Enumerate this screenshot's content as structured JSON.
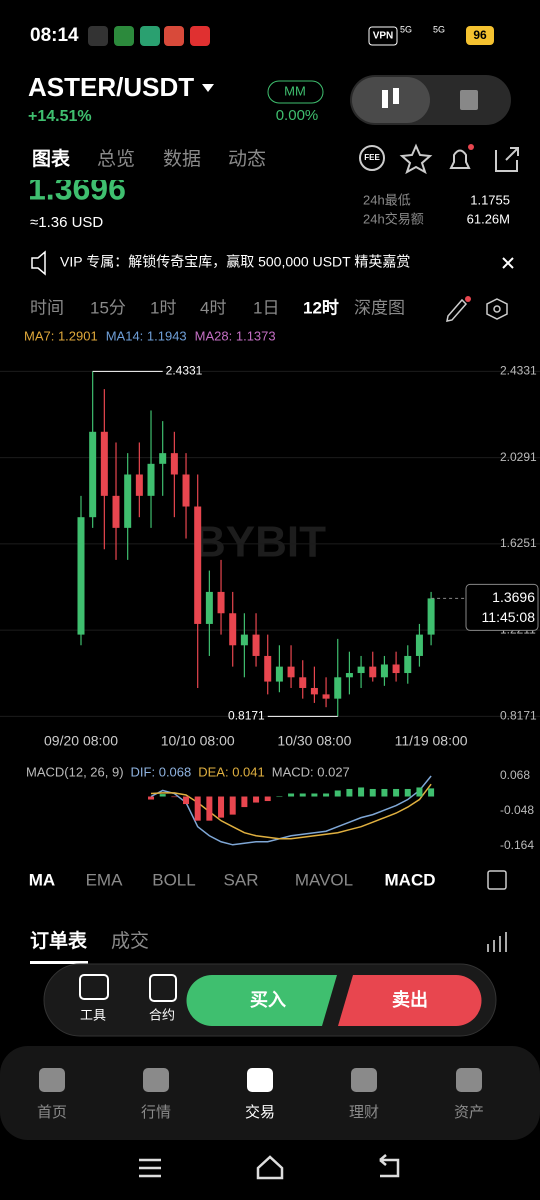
{
  "status_bar": {
    "time": "08:14",
    "vpn": "VPN",
    "network": "5G",
    "battery": "96"
  },
  "header": {
    "pair": "ASTER/USDT",
    "change": "+14.51%",
    "mm_label": "MM",
    "mm_value": "0.00%"
  },
  "tabs": [
    "图表",
    "总览",
    "数据",
    "动态"
  ],
  "fee_badge": "FEE",
  "market": {
    "last_price": "1.3696",
    "usd_price": "≈1.36 USD",
    "stats": [
      {
        "label": "24h最低",
        "value": "1.1755"
      },
      {
        "label": "24h交易额",
        "value": "61.26M"
      }
    ]
  },
  "banner": "VIP 专属：解锁传奇宝库，赢取 500,000 USDT 精英嘉赏",
  "intervals": [
    "时间",
    "15分",
    "1时",
    "4时",
    "1日",
    "12时",
    "深度图"
  ],
  "ma_legend": [
    {
      "text": "MA7: 1.2901",
      "color": "#e0a93b"
    },
    {
      "text": "MA14: 1.1943",
      "color": "#6f9fd8"
    },
    {
      "text": "MA28: 1.1373",
      "color": "#c46fc4"
    }
  ],
  "watermark": "BYBIT",
  "chart_data": [
    {
      "type": "candlestick",
      "categories": [
        "09/20 08:00",
        null,
        null,
        null,
        null,
        null,
        null,
        null,
        null,
        null,
        "10/10 08:00",
        null,
        null,
        null,
        null,
        null,
        null,
        null,
        null,
        null,
        "10/30 08:00",
        null,
        null,
        null,
        null,
        null,
        null,
        null,
        null,
        null,
        "11/19 08:00"
      ],
      "open": [
        1.2,
        1.75,
        2.15,
        1.85,
        1.7,
        1.95,
        1.85,
        2.0,
        2.05,
        1.95,
        1.8,
        1.25,
        1.4,
        1.3,
        1.15,
        1.2,
        1.1,
        0.98,
        1.05,
        1.0,
        0.95,
        0.92,
        0.9,
        1.0,
        1.02,
        1.05,
        1.0,
        1.06,
        1.02,
        1.1,
        1.2
      ],
      "high": [
        1.85,
        2.4331,
        2.35,
        2.1,
        2.05,
        2.1,
        2.25,
        2.2,
        2.15,
        2.05,
        1.95,
        1.5,
        1.55,
        1.4,
        1.3,
        1.3,
        1.2,
        1.15,
        1.15,
        1.08,
        1.05,
        1.0,
        1.18,
        1.12,
        1.1,
        1.12,
        1.1,
        1.12,
        1.15,
        1.25,
        1.4
      ],
      "low": [
        1.15,
        1.7,
        1.6,
        1.55,
        1.55,
        1.75,
        1.7,
        1.85,
        1.75,
        1.65,
        0.95,
        1.1,
        1.2,
        1.05,
        1.0,
        1.05,
        0.92,
        0.93,
        0.95,
        0.9,
        0.88,
        0.86,
        0.8171,
        0.92,
        0.95,
        0.98,
        0.96,
        0.98,
        0.97,
        1.05,
        1.15
      ],
      "close": [
        1.75,
        2.15,
        1.85,
        1.7,
        1.95,
        1.85,
        2.0,
        2.05,
        1.95,
        1.8,
        1.25,
        1.4,
        1.3,
        1.15,
        1.2,
        1.1,
        0.98,
        1.05,
        1.0,
        0.95,
        0.92,
        0.9,
        1.0,
        1.02,
        1.05,
        1.0,
        1.06,
        1.02,
        1.1,
        1.2,
        1.3696
      ],
      "up_color": "#3fbf6f",
      "down_color": "#e8464f",
      "ylim": [
        0.8,
        2.58
      ],
      "yticks": [
        2.4331,
        2.0291,
        1.6251,
        1.2211,
        0.8171
      ],
      "grid": true,
      "countdown": "11:45:08"
    },
    {
      "type": "line",
      "title": "MACD(12, 26, 9)",
      "ylim": [
        -0.164,
        0.068
      ],
      "yticks": [
        0.068,
        -0.048,
        -0.164
      ],
      "series": [
        {
          "name": "DIF: 0.068",
          "color": "#7fa7d6",
          "values": [
            null,
            null,
            null,
            null,
            null,
            null,
            0.0,
            0.02,
            0.01,
            -0.02,
            -0.1,
            -0.13,
            -0.15,
            -0.16,
            -0.155,
            -0.15,
            -0.15,
            -0.14,
            -0.13,
            -0.125,
            -0.12,
            -0.115,
            -0.1,
            -0.085,
            -0.07,
            -0.06,
            -0.045,
            -0.03,
            -0.01,
            0.02,
            0.068
          ]
        },
        {
          "name": "DEA: 0.041",
          "color": "#e0b040",
          "values": [
            null,
            null,
            null,
            null,
            null,
            null,
            0.01,
            0.012,
            0.012,
            0.005,
            -0.02,
            -0.05,
            -0.08,
            -0.1,
            -0.12,
            -0.13,
            -0.135,
            -0.14,
            -0.14,
            -0.135,
            -0.13,
            -0.125,
            -0.12,
            -0.11,
            -0.1,
            -0.085,
            -0.07,
            -0.055,
            -0.035,
            -0.01,
            0.041
          ]
        },
        {
          "name": "MACD: 0.027",
          "type": "histogram",
          "color": "#3fbf6f",
          "negative_color": "#e8464f",
          "values": [
            null,
            null,
            null,
            null,
            null,
            null,
            -0.01,
            0.008,
            -0.002,
            -0.025,
            -0.08,
            -0.08,
            -0.07,
            -0.06,
            -0.035,
            -0.02,
            -0.015,
            0.0,
            0.01,
            0.01,
            0.01,
            0.01,
            0.02,
            0.025,
            0.03,
            0.025,
            0.025,
            0.025,
            0.025,
            0.03,
            0.027
          ]
        }
      ]
    }
  ],
  "indicator_tabs": [
    "MA",
    "EMA",
    "BOLL",
    "SAR",
    "MAVOL",
    "MACD"
  ],
  "order_tabs": [
    "订单表",
    "成交"
  ],
  "actions": {
    "tools": "工具",
    "contract": "合约",
    "buy": "买入",
    "sell": "卖出"
  },
  "nav": [
    "首页",
    "行情",
    "交易",
    "理财",
    "资产"
  ]
}
